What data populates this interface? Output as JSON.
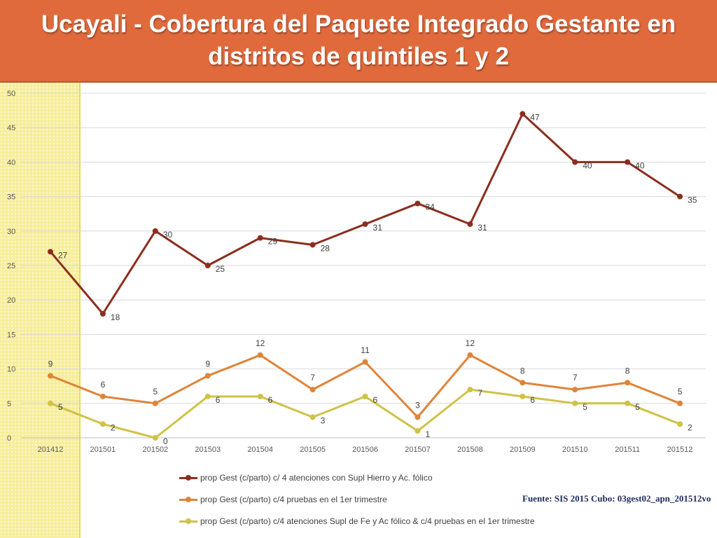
{
  "title": {
    "line1": "Ucayali - Cobertura del Paquete Integrado Gestante en",
    "line2": "distritos de quintiles 1 y 2"
  },
  "source": "Fuente: SIS 2015 Cubo: 03gest02_apn_201512vo",
  "chart_data": {
    "type": "line",
    "categories": [
      "201412",
      "201501",
      "201502",
      "201503",
      "201504",
      "201505",
      "201506",
      "201507",
      "201508",
      "201509",
      "201510",
      "201511",
      "201512"
    ],
    "ylim": [
      0,
      50
    ],
    "yticks": [
      0,
      5,
      10,
      15,
      20,
      25,
      30,
      35,
      40,
      45,
      50
    ],
    "grid": true,
    "legend_position": "bottom",
    "series": [
      {
        "name": "prop Gest (c/parto) c/ 4 atenciones con Supl Hierro y Ac. fólico",
        "color": "#8b2e1e",
        "values": [
          27,
          18,
          30,
          25,
          29,
          28,
          31,
          34,
          31,
          47,
          40,
          40,
          35
        ]
      },
      {
        "name": "prop Gest (c/parto) c/4 pruebas en el 1er trimestre",
        "color": "#df8438",
        "values": [
          9,
          6,
          5,
          9,
          12,
          7,
          11,
          3,
          12,
          8,
          7,
          8,
          5
        ]
      },
      {
        "name": "prop Gest (c/parto) c/4 atenciones Supl de Fe y Ac fólico & c/4 pruebas en el 1er trimestre",
        "color": "#cfc246",
        "values": [
          5,
          2,
          0,
          6,
          6,
          3,
          6,
          1,
          7,
          6,
          5,
          5,
          2
        ]
      }
    ]
  }
}
